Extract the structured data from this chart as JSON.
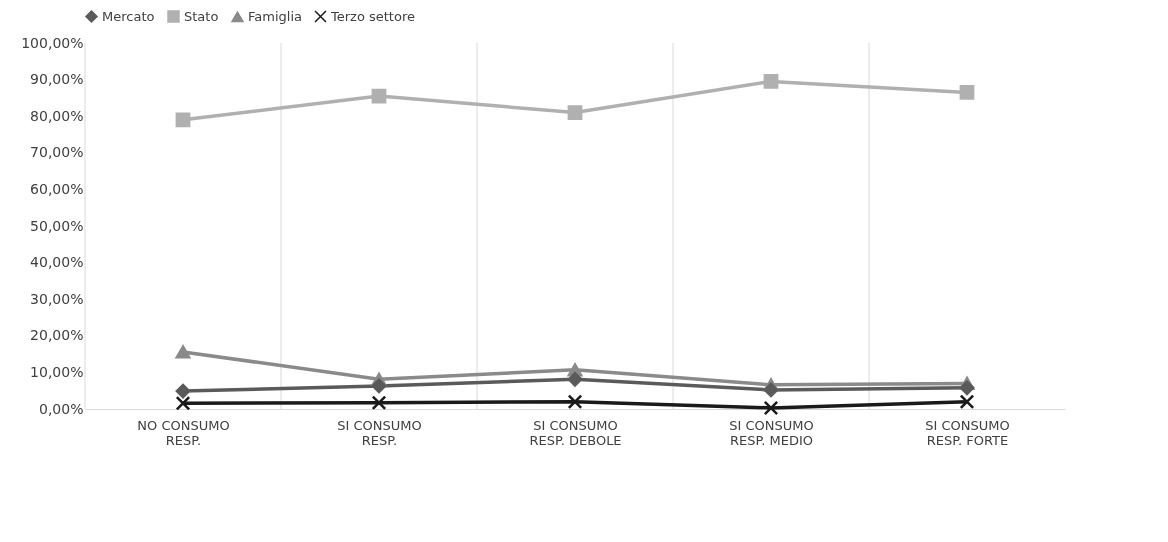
{
  "chart_data": {
    "type": "line",
    "categories": [
      "NO CONSUMO\nRESP.",
      "SI CONSUMO\nRESP.",
      "SI CONSUMO\nRESP. DEBOLE",
      "SI CONSUMO\nRESP. MEDIO",
      "SI CONSUMO\nRESP. FORTE"
    ],
    "series": [
      {
        "name": "Mercato",
        "color": "#5a5a5a",
        "marker": "diamond",
        "values": [
          4.9,
          6.3,
          8.1,
          5.2,
          5.8
        ]
      },
      {
        "name": "Stato",
        "color": "#b0b0b0",
        "marker": "square",
        "values": [
          79.0,
          85.5,
          81.0,
          89.5,
          86.5
        ]
      },
      {
        "name": "Famiglia",
        "color": "#8a8a8a",
        "marker": "triangle",
        "values": [
          15.6,
          8.1,
          10.7,
          6.6,
          7.0
        ]
      },
      {
        "name": "Terzo settore",
        "color": "#1a1a1a",
        "marker": "cross",
        "values": [
          1.6,
          1.7,
          2.0,
          0.3,
          2.0
        ]
      }
    ],
    "ylim": [
      0,
      100
    ],
    "yticks": [
      {
        "value": 0,
        "label": "0,00%"
      },
      {
        "value": 10,
        "label": "10,00%"
      },
      {
        "value": 20,
        "label": "20,00%"
      },
      {
        "value": 30,
        "label": "30,00%"
      },
      {
        "value": 40,
        "label": "40,00%"
      },
      {
        "value": 50,
        "label": "50,00%"
      },
      {
        "value": 60,
        "label": "60,00%"
      },
      {
        "value": 70,
        "label": "70,00%"
      },
      {
        "value": 80,
        "label": "80,00%"
      },
      {
        "value": 90,
        "label": "90,00%"
      },
      {
        "value": 100,
        "label": "100,00%"
      }
    ],
    "grid": "x",
    "legend": "top",
    "line_style": "solid"
  }
}
